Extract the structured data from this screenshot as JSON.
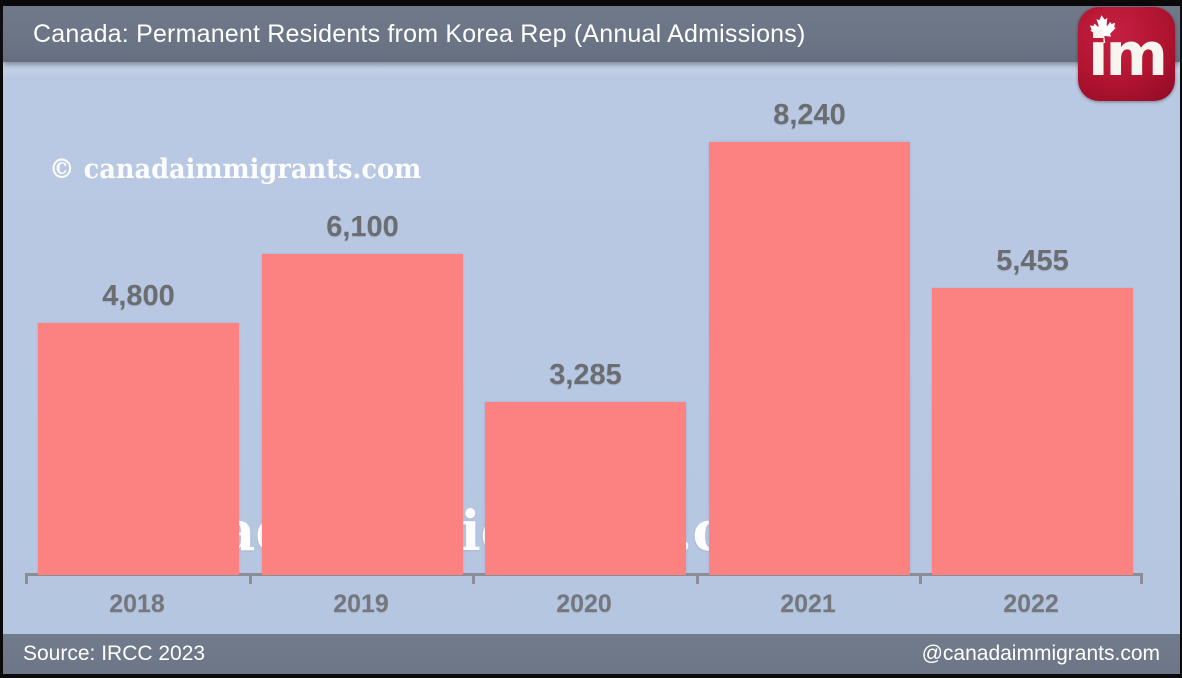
{
  "header": {
    "title": "Canada: Permanent Residents from Korea Rep (Annual Admissions)"
  },
  "logo": {
    "text": "im",
    "icon": "maple-leaf",
    "background_color": "#B0142F"
  },
  "watermarks": {
    "small": "© canadaimmigrants.com",
    "large": "© canadaimmigrants.com"
  },
  "footer": {
    "source": "Source: IRCC 2023",
    "handle": "@canadaimmigrants.com"
  },
  "chart_data": {
    "type": "bar",
    "title": "Canada: Permanent Residents from Korea Rep (Annual Admissions)",
    "categories": [
      "2018",
      "2019",
      "2020",
      "2021",
      "2022"
    ],
    "values": [
      4800,
      6100,
      3285,
      8240,
      5455
    ],
    "value_labels": [
      "4,800",
      "6,100",
      "3,285",
      "8,240",
      "5,455"
    ],
    "xlabel": "",
    "ylabel": "",
    "ylim": [
      0,
      8700
    ],
    "grid": false,
    "legend": false,
    "bar_color": "#FC8181",
    "plot_background": "#B7C8E2",
    "label_color": "#6B6D71",
    "axis_color": "#8B8E96"
  }
}
